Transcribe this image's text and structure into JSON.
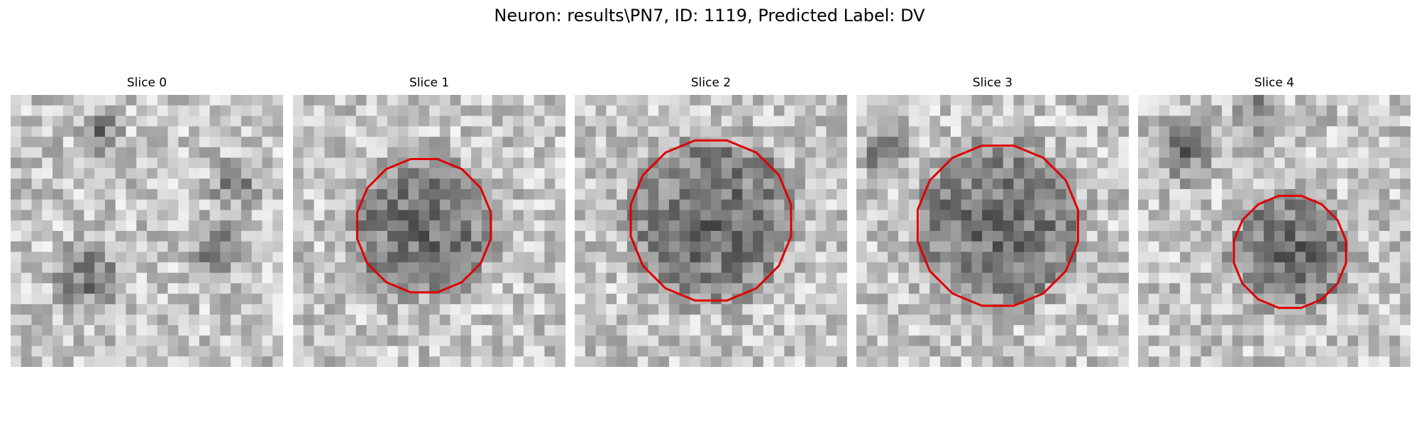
{
  "figure": {
    "title": "Neuron: results\\PN7, ID: 1119, Predicted Label: DV",
    "outline_color": "#e00000"
  },
  "slices": [
    {
      "label": "Slice 0",
      "has_outline": false,
      "outline_radius": 0
    },
    {
      "label": "Slice 1",
      "has_outline": true,
      "outline_radius": 0.5
    },
    {
      "label": "Slice 2",
      "has_outline": true,
      "outline_radius": 0.6
    },
    {
      "label": "Slice 3",
      "has_outline": true,
      "outline_radius": 0.6
    },
    {
      "label": "Slice 4",
      "has_outline": true,
      "outline_radius": 0.42
    }
  ]
}
